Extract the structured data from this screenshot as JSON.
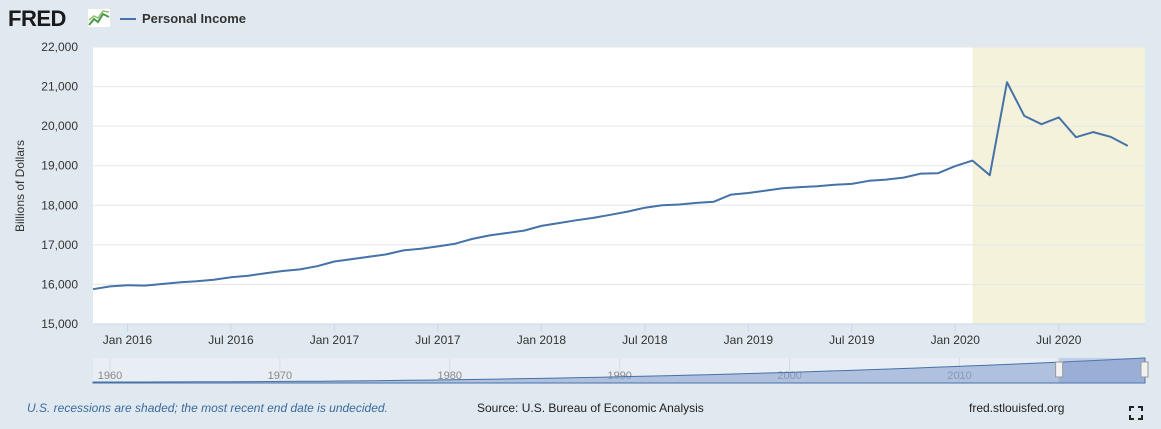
{
  "header": {
    "logo_text": "FRED",
    "logo_icon": "chart-line-logo-icon",
    "legend_label": "Personal Income"
  },
  "footer": {
    "recession_note": "U.S. recessions are shaded; the most recent end date is undecided.",
    "source": "Source: U.S. Bureau of Economic Analysis",
    "site": "fred.stlouisfed.org",
    "fullscreen_icon": "fullscreen-icon"
  },
  "colors": {
    "series": "#4572a7",
    "recession_shade": "#f5f2dc",
    "page_background": "#e1e9f0",
    "plot_background": "#ffffff",
    "navigator_fill": "#8ba3d0"
  },
  "chart_data": {
    "type": "line",
    "title": "",
    "xlabel": "",
    "ylabel": "Billions of Dollars",
    "grid": true,
    "legend_position": "top-left",
    "x_start": "2015-11",
    "x_end": "2020-12",
    "ylim": [
      15000,
      22000
    ],
    "yticks": [
      15000,
      16000,
      17000,
      18000,
      19000,
      20000,
      21000,
      22000
    ],
    "ytick_labels": [
      "15,000",
      "16,000",
      "17,000",
      "18,000",
      "19,000",
      "20,000",
      "21,000",
      "22,000"
    ],
    "xticks": [
      {
        "date": "2016-01",
        "label": "Jan 2016"
      },
      {
        "date": "2016-07",
        "label": "Jul 2016"
      },
      {
        "date": "2017-01",
        "label": "Jan 2017"
      },
      {
        "date": "2017-07",
        "label": "Jul 2017"
      },
      {
        "date": "2018-01",
        "label": "Jan 2018"
      },
      {
        "date": "2018-07",
        "label": "Jul 2018"
      },
      {
        "date": "2019-01",
        "label": "Jan 2019"
      },
      {
        "date": "2019-07",
        "label": "Jul 2019"
      },
      {
        "date": "2020-01",
        "label": "Jan 2020"
      },
      {
        "date": "2020-07",
        "label": "Jul 2020"
      }
    ],
    "recession": {
      "start": "2020-02",
      "end": "2020-12"
    },
    "series": [
      {
        "name": "Personal Income",
        "x": [
          "2015-11",
          "2015-12",
          "2016-01",
          "2016-02",
          "2016-03",
          "2016-04",
          "2016-05",
          "2016-06",
          "2016-07",
          "2016-08",
          "2016-09",
          "2016-10",
          "2016-11",
          "2016-12",
          "2017-01",
          "2017-02",
          "2017-03",
          "2017-04",
          "2017-05",
          "2017-06",
          "2017-07",
          "2017-08",
          "2017-09",
          "2017-10",
          "2017-11",
          "2017-12",
          "2018-01",
          "2018-02",
          "2018-03",
          "2018-04",
          "2018-05",
          "2018-06",
          "2018-07",
          "2018-08",
          "2018-09",
          "2018-10",
          "2018-11",
          "2018-12",
          "2019-01",
          "2019-02",
          "2019-03",
          "2019-04",
          "2019-05",
          "2019-06",
          "2019-07",
          "2019-08",
          "2019-09",
          "2019-10",
          "2019-11",
          "2019-12",
          "2020-01",
          "2020-02",
          "2020-03",
          "2020-04",
          "2020-05",
          "2020-06",
          "2020-07",
          "2020-08",
          "2020-09",
          "2020-10",
          "2020-11"
        ],
        "y": [
          15880,
          15950,
          15980,
          15970,
          16010,
          16050,
          16080,
          16120,
          16180,
          16220,
          16280,
          16340,
          16380,
          16460,
          16580,
          16640,
          16700,
          16760,
          16860,
          16900,
          16960,
          17030,
          17150,
          17240,
          17300,
          17360,
          17480,
          17550,
          17620,
          17680,
          17760,
          17840,
          17940,
          18000,
          18020,
          18060,
          18090,
          18270,
          18310,
          18370,
          18430,
          18460,
          18480,
          18520,
          18540,
          18620,
          18650,
          18700,
          18800,
          18810,
          18990,
          19130,
          18760,
          21110,
          20260,
          20050,
          20220,
          19720,
          19850,
          19730,
          19500
        ]
      }
    ],
    "navigator": {
      "xlim": [
        "1959-01",
        "2020-12"
      ],
      "tick_labels": [
        {
          "date": "1960-01",
          "label": "1960"
        },
        {
          "date": "1970-01",
          "label": "1970"
        },
        {
          "date": "1980-01",
          "label": "1980"
        },
        {
          "date": "1990-01",
          "label": "1990"
        },
        {
          "date": "2000-01",
          "label": "2000"
        },
        {
          "date": "2010-01",
          "label": "2010"
        }
      ],
      "selected": {
        "start": "2015-11",
        "end": "2020-12"
      }
    }
  }
}
